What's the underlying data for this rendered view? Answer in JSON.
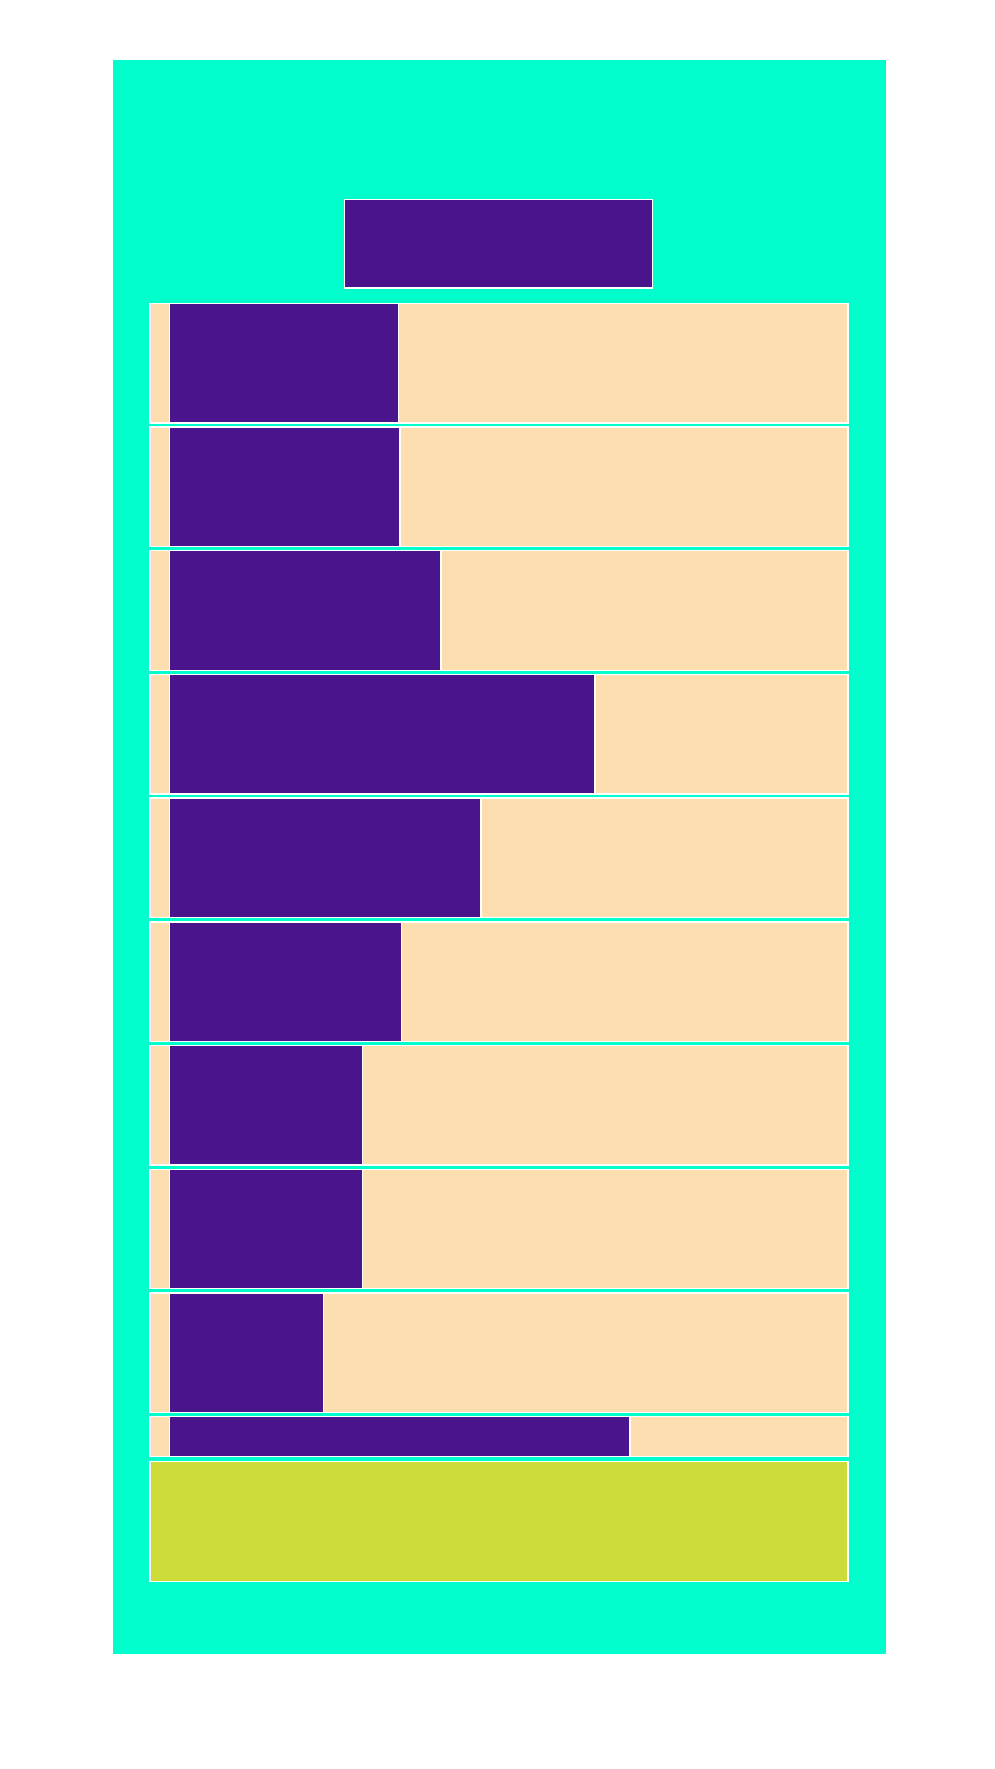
{
  "colors": {
    "page_background": "#ffffff",
    "panel": "#00ffcc",
    "bar_fill": "#4a148c",
    "bar_track": "#fcdeb1",
    "footer": "#cddc39",
    "divider": "#ffffff"
  },
  "rows": [
    {
      "fill_fraction": 0.339
    },
    {
      "fill_fraction": 0.341
    },
    {
      "fill_fraction": 0.401
    },
    {
      "fill_fraction": 0.629
    },
    {
      "fill_fraction": 0.46
    },
    {
      "fill_fraction": 0.343
    },
    {
      "fill_fraction": 0.286
    },
    {
      "fill_fraction": 0.286
    },
    {
      "fill_fraction": 0.228
    },
    {
      "fill_fraction": 0.681
    }
  ]
}
